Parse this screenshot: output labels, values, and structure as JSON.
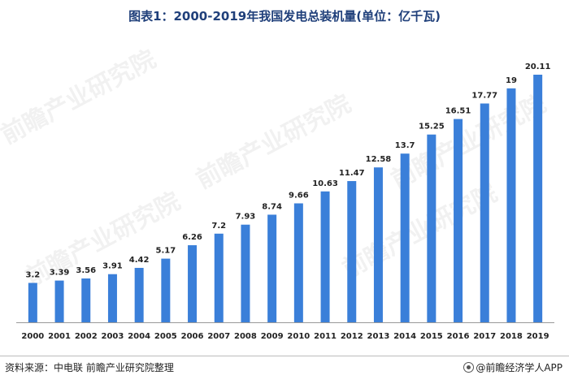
{
  "page": {
    "title": "图表1：2000-2019年我国发电总装机量(单位：亿千瓦)",
    "source": "资料来源：中电联 前瞻产业研究院整理",
    "brand": "@前瞻经济学人APP",
    "watermark": "前瞻产业研究院"
  },
  "colors": {
    "bar": "#3a7fd9",
    "axis": "#999999",
    "label": "#222222",
    "title": "#1f3f7a"
  },
  "chart_data": {
    "type": "bar",
    "title": "图表1：2000-2019年我国发电总装机量(单位：亿千瓦)",
    "xlabel": "",
    "ylabel": "",
    "unit": "亿千瓦",
    "categories": [
      "2000",
      "2001",
      "2002",
      "2003",
      "2004",
      "2005",
      "2006",
      "2007",
      "2008",
      "2009",
      "2010",
      "2011",
      "2012",
      "2013",
      "2014",
      "2015",
      "2016",
      "2017",
      "2018",
      "2019"
    ],
    "values": [
      3.2,
      3.39,
      3.56,
      3.91,
      4.42,
      5.17,
      6.26,
      7.2,
      7.93,
      8.74,
      9.66,
      10.63,
      11.47,
      12.58,
      13.7,
      15.25,
      16.51,
      17.77,
      19,
      20.11
    ],
    "value_labels": [
      "3.2",
      "3.39",
      "3.56",
      "3.91",
      "4.42",
      "5.17",
      "6.26",
      "7.2",
      "7.93",
      "8.74",
      "9.66",
      "10.63",
      "11.47",
      "12.58",
      "13.7",
      "15.25",
      "16.51",
      "17.77",
      "19",
      "20.11"
    ],
    "ylim": [
      0,
      20.11
    ],
    "grid": false,
    "legend": "none"
  }
}
